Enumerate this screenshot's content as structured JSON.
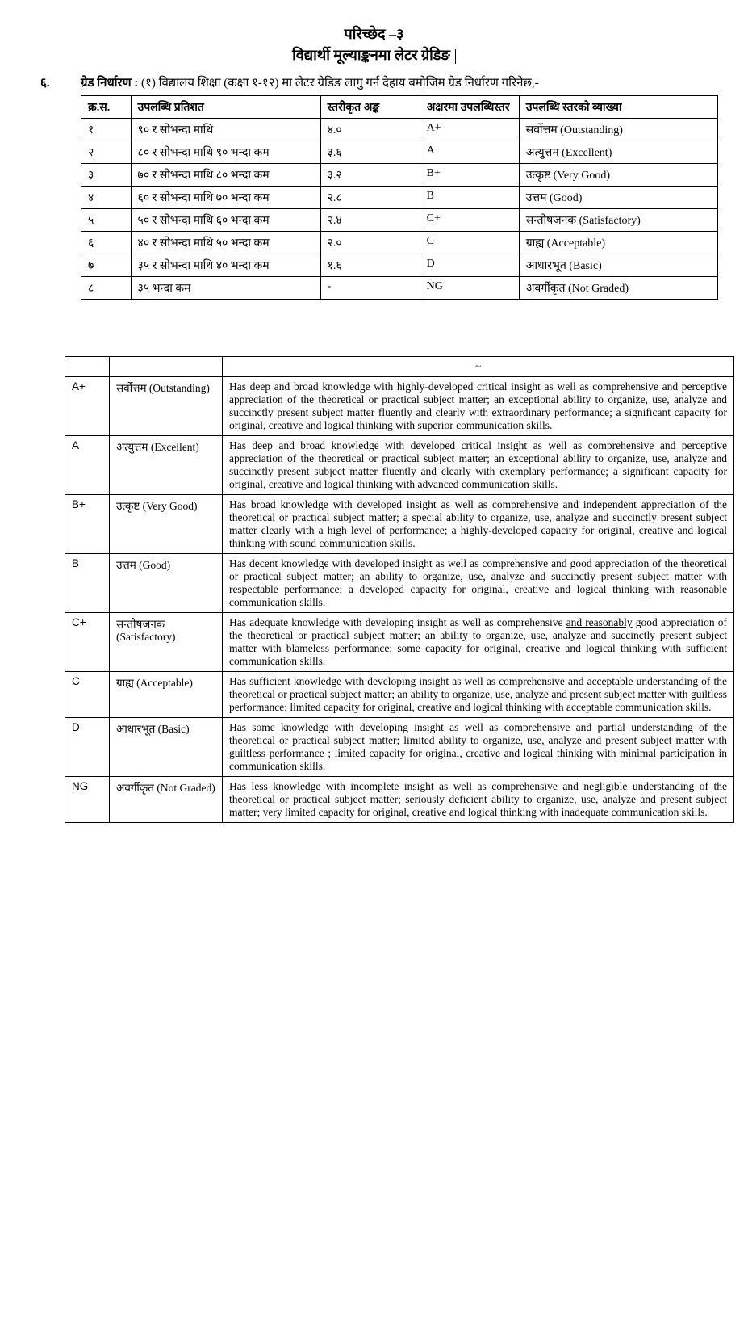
{
  "chapter": "परिच्छेद –३",
  "section": "विद्यार्थी मूल्याङ्कनमा लेटर ग्रेडिङ",
  "intro_num": "६.",
  "intro_lead": "ग्रेड निर्धारण :",
  "intro_body": "(१) विद्यालय शिक्षा (कक्षा १-१२) मा लेटर ग्रेडिङ लागु गर्न देहाय बमोजिम ग्रेड निर्धारण गरिनेछ,-",
  "table1": {
    "headers": [
      "क्र.स.",
      "उपलब्धि प्रतिशत",
      "स्तरीकृत अङ्क",
      "अक्षरमा उपलब्धिस्तर",
      "उपलब्धि स्तरको व्याख्या"
    ],
    "rows": [
      [
        "१",
        "९० र सोभन्दा माथि",
        "४.०",
        "A+",
        "सर्वोत्तम (Outstanding)"
      ],
      [
        "२",
        "८० र सोभन्दा माथि ९० भन्दा कम",
        "३.६",
        "A",
        "अत्युत्तम (Excellent)"
      ],
      [
        "३",
        "७० र सोभन्दा माथि ८० भन्दा कम",
        "३.२",
        "B+",
        "उत्कृष्ट (Very Good)"
      ],
      [
        "४",
        "६० र सोभन्दा माथि ७० भन्दा कम",
        "२.८",
        "B",
        "उत्तम (Good)"
      ],
      [
        "५",
        "५० र सोभन्दा माथि ६० भन्दा कम",
        "२.४",
        "C+",
        "सन्तोषजनक (Satisfactory)"
      ],
      [
        "६",
        "४० र सोभन्दा माथि ५० भन्दा कम",
        "२.०",
        "C",
        "ग्राह्य (Acceptable)"
      ],
      [
        "७",
        "३५ र सोभन्दा माथि ४० भन्दा कम",
        "१.६",
        "D",
        "आधारभूत (Basic)"
      ],
      [
        "८",
        "३५ भन्दा कम",
        "-",
        "NG",
        "अवर्गीकृत (Not Graded)"
      ]
    ]
  },
  "table2": {
    "rows": [
      {
        "grade": "A+",
        "label": "सर्वोत्तम (Outstanding)",
        "desc": "Has deep and broad knowledge with highly-developed critical insight as well as comprehensive and perceptive appreciation of the theoretical or practical subject matter;  an exceptional ability to organize, use, analyze and succinctly present subject matter fluently and clearly with extraordinary performance;  a significant capacity for original, creative and logical thinking   with superior communication skills."
      },
      {
        "grade": "A",
        "label": "अत्युत्तम (Excellent)",
        "desc": "Has deep and broad knowledge with developed critical insight as well as comprehensive and perceptive appreciation of the theoretical or practical subject matter;  an exceptional ability to organize, use, analyze and succinctly present subject matter fluently and clearly with exemplary  performance;  a significant capacity for original, creative and logical thinking with advanced communication skills."
      },
      {
        "grade": "B+",
        "label": "उत्कृष्ट (Very Good)",
        "desc": "Has broad knowledge with developed insight as well as comprehensive and independent appreciation of the theoretical or practical subject matter; a special ability to organize, use, analyze and succinctly present subject matter clearly with a high level of performance; a  highly-developed capacity for original, creative and logical thinking with sound communication skills."
      },
      {
        "grade": "B",
        "label": "उत्तम (Good)",
        "desc": "Has decent  knowledge with developed insight as well as comprehensive and good appreciation of the theoretical or practical subject matter; an ability to organize, use, analyze and succinctly present subject matter with respectable performance;  a developed capacity for original, creative and logical thinking with reasonable communication skills."
      },
      {
        "grade": "C+",
        "label": "सन्तोषजनक (Satisfactory)",
        "desc_html": "Has  adequate  knowledge with developing insight as well as comprehensive <span class='underline-word'>and reasonably</span> good   appreciation of the theoretical or practical subject matter;  an ability to organize, use, analyze and succinctly present subject matter with  blameless performance;   some capacity for original, creative and logical thinking with sufficient communication skills."
      },
      {
        "grade": "C",
        "label": "ग्राह्य (Acceptable)",
        "desc": "Has sufficient  knowledge with developing insight as well as comprehensive and acceptable understanding  of the theoretical or practical subject matter; an ability to organize, use, analyze and present subject matter with  guiltless performance;  limited  capacity for original, creative and logical thinking with acceptable communication skills."
      },
      {
        "grade": "D",
        "label": "आधारभूत (Basic)",
        "desc": "Has some  knowledge with developing insight as well as comprehensive and  partial understanding  of the theoretical or practical subject matter;  limited ability  to organize, use, analyze and present subject matter with  guiltless performance ; limited capacity for original, creative and logical thinking with minimal participation in communication skills."
      },
      {
        "grade": "NG",
        "label": "अवर्गीकृत (Not Graded)",
        "desc": "Has less  knowledge with incomplete insight as well as comprehensive and negligible understanding of the theoretical or practical subject matter; seriously deficient ability to organize, use, analyze and present subject matter; very  limited  capacity for original, creative and logical thinking with inadequate communication skills."
      }
    ]
  }
}
